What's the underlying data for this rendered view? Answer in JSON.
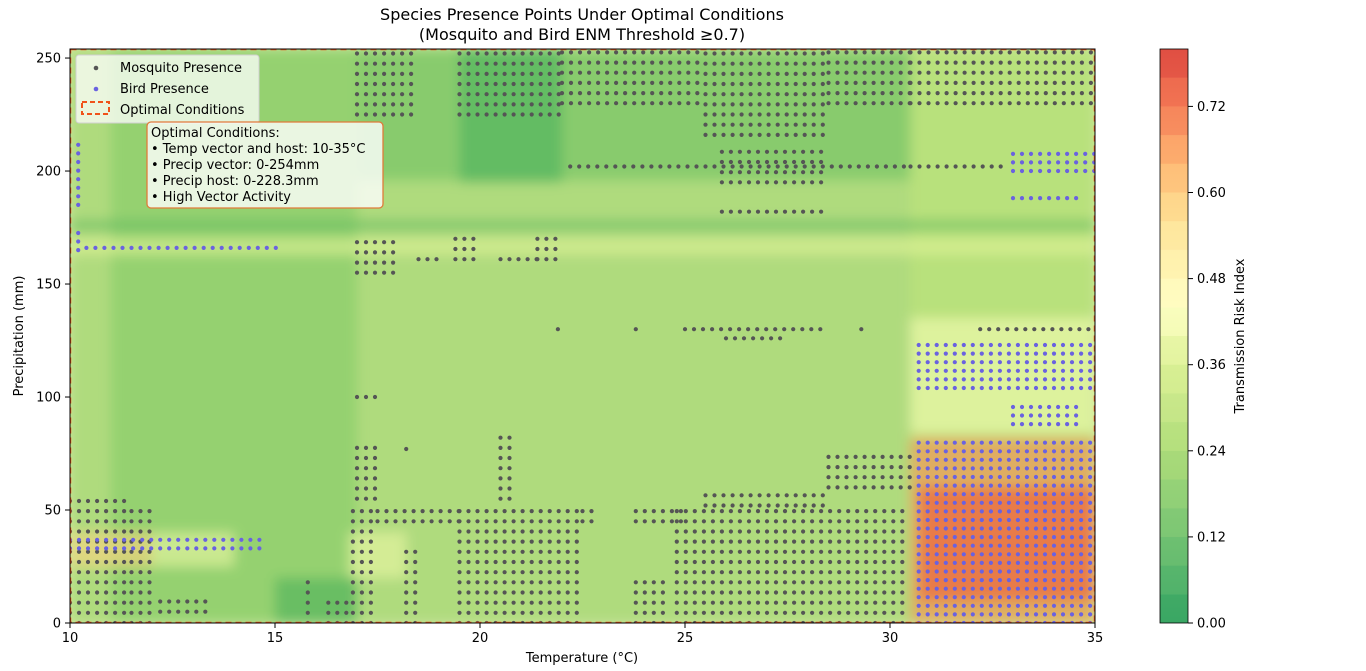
{
  "chart_data": {
    "type": "heatmap",
    "title": "Species Presence Points Under Optimal Conditions",
    "subtitle": "(Mosquito and Bird ENM Threshold ≥0.7)",
    "xlabel": "Temperature (°C)",
    "ylabel": "Precipitation (mm)",
    "xlim": [
      10,
      35
    ],
    "ylim": [
      0,
      254
    ],
    "x_ticks": [
      "10",
      "15",
      "20",
      "25",
      "30",
      "35"
    ],
    "y_ticks": [
      "0",
      "50",
      "100",
      "150",
      "200",
      "250"
    ],
    "grid": false,
    "legend_position": "upper-left",
    "legend": [
      {
        "label": "Mosquito Presence",
        "marker": "point",
        "color": "#555555"
      },
      {
        "label": "Bird Presence",
        "marker": "point",
        "color": "#6a62e0"
      },
      {
        "label": "Optimal Conditions",
        "marker": "dashed-box",
        "color": "#f0531a"
      }
    ],
    "annotation": {
      "lines": [
        "Optimal Conditions:",
        "• Temp vector and host: 10-35°C",
        "• Precip vector: 0-254mm",
        "• Precip host: 0-228.3mm",
        "• High Vector Activity"
      ]
    },
    "colorbar": {
      "label": "Transmission Risk Index",
      "range": [
        0,
        0.8
      ],
      "ticks": [
        "0.00",
        "0.12",
        "0.24",
        "0.36",
        "0.48",
        "0.60",
        "0.72"
      ],
      "colormap": "RdYlGn_r",
      "levels": [
        0,
        0.04,
        0.08,
        0.12,
        0.16,
        0.2,
        0.24,
        0.28,
        0.32,
        0.36,
        0.4,
        0.44,
        0.48,
        0.52,
        0.56,
        0.6,
        0.64,
        0.68,
        0.72,
        0.76,
        0.8
      ]
    },
    "risk_regions": [
      {
        "x": [
          10,
          35
        ],
        "y": [
          0,
          254
        ],
        "risk": 0.22
      },
      {
        "x": [
          17,
          30.5
        ],
        "y": [
          196,
          254
        ],
        "risk": 0.14
      },
      {
        "x": [
          11,
          17
        ],
        "y": [
          0,
          254
        ],
        "risk": 0.18
      },
      {
        "x": [
          30.5,
          35
        ],
        "y": [
          0,
          254
        ],
        "risk": 0.3
      },
      {
        "x": [
          10,
          35
        ],
        "y": [
          163,
          170
        ],
        "risk": 0.38
      },
      {
        "x": [
          10,
          35
        ],
        "y": [
          174,
          178
        ],
        "risk": 0.1
      },
      {
        "x": [
          30.5,
          35
        ],
        "y": [
          84,
          135
        ],
        "risk": 0.42
      },
      {
        "x": [
          30.5,
          35
        ],
        "y": [
          0,
          82
        ],
        "risk": 0.68
      },
      {
        "x": [
          30.7,
          35
        ],
        "y": [
          10,
          60
        ],
        "risk": 0.74
      },
      {
        "x": [
          10,
          12
        ],
        "y": [
          25,
          40
        ],
        "risk": 0.58
      },
      {
        "x": [
          12,
          14
        ],
        "y": [
          25,
          40
        ],
        "risk": 0.4
      },
      {
        "x": [
          16.8,
          18.2
        ],
        "y": [
          20,
          40
        ],
        "risk": 0.4
      },
      {
        "x": [
          15,
          17
        ],
        "y": [
          0,
          20
        ],
        "risk": 0.08
      },
      {
        "x": [
          19.5,
          22
        ],
        "y": [
          195,
          254
        ],
        "risk": 0.08
      }
    ],
    "series": [
      {
        "name": "Mosquito Presence",
        "color": "#555555",
        "clusters": [
          {
            "x": [
              17.0,
              18.4,
              0.22
            ],
            "y": [
              225,
              254,
              4.5
            ]
          },
          {
            "x": [
              19.5,
              22.0,
              0.22
            ],
            "y": [
              225,
              254,
              4.5
            ]
          },
          {
            "x": [
              22.0,
              25.5,
              0.22
            ],
            "y": [
              230,
              254,
              4.5
            ]
          },
          {
            "x": [
              25.5,
              28.5,
              0.22
            ],
            "y": [
              216,
              254,
              4.5
            ]
          },
          {
            "x": [
              28.5,
              30.5,
              0.22
            ],
            "y": [
              230,
              254,
              4.5
            ]
          },
          {
            "x": [
              30.5,
              35.0,
              0.22
            ],
            "y": [
              230,
              254,
              4.5
            ]
          },
          {
            "x": [
              22.2,
              30.5,
              0.22
            ],
            "y": [
              202,
              202,
              4.5
            ]
          },
          {
            "x": [
              30.5,
              32.8,
              0.22
            ],
            "y": [
              202,
              202,
              4.5
            ]
          },
          {
            "x": [
              25.9,
              28.5,
              0.22
            ],
            "y": [
              195,
              212,
              4.5
            ]
          },
          {
            "x": [
              25.9,
              28.5,
              0.22
            ],
            "y": [
              182,
              182,
              4.5
            ]
          },
          {
            "x": [
              17.0,
              18.0,
              0.22
            ],
            "y": [
              155,
              170,
              4.5
            ]
          },
          {
            "x": [
              18.5,
              19.0,
              0.22
            ],
            "y": [
              161,
              161,
              4.5
            ]
          },
          {
            "x": [
              19.4,
              19.9,
              0.22
            ],
            "y": [
              161,
              170,
              4.5
            ]
          },
          {
            "x": [
              20.5,
              21.4,
              0.22
            ],
            "y": [
              161,
              161,
              4.5
            ]
          },
          {
            "x": [
              21.4,
              21.9,
              0.22
            ],
            "y": [
              161,
              170,
              4.5
            ]
          },
          {
            "x": [
              21.9,
              22.0,
              0.22
            ],
            "y": [
              130,
              130,
              4.5
            ]
          },
          {
            "x": [
              23.8,
              23.9,
              0.22
            ],
            "y": [
              130,
              134,
              4.5
            ]
          },
          {
            "x": [
              25.0,
              28.5,
              0.22
            ],
            "y": [
              130,
              134,
              4.5
            ]
          },
          {
            "x": [
              26.0,
              27.5,
              0.22
            ],
            "y": [
              126,
              126,
              4.5
            ]
          },
          {
            "x": [
              29.3,
              29.4,
              0.22
            ],
            "y": [
              130,
              134,
              4.5
            ]
          },
          {
            "x": [
              32.2,
              35.0,
              0.22
            ],
            "y": [
              130,
              130,
              4.5
            ]
          },
          {
            "x": [
              17.0,
              17.5,
              0.22
            ],
            "y": [
              100,
              100,
              4.5
            ]
          },
          {
            "x": [
              17.0,
              17.5,
              0.22
            ],
            "y": [
              55,
              80,
              4.5
            ]
          },
          {
            "x": [
              18.2,
              18.3,
              0.22
            ],
            "y": [
              77,
              77,
              4.5
            ]
          },
          {
            "x": [
              20.5,
              20.9,
              0.22
            ],
            "y": [
              55,
              82,
              4.5
            ]
          },
          {
            "x": [
              28.5,
              30.5,
              0.22
            ],
            "y": [
              60,
              74,
              4.5
            ]
          },
          {
            "x": [
              10.0,
              11.5,
              0.22
            ],
            "y": [
              0,
              55,
              4.5
            ]
          },
          {
            "x": [
              11.5,
              12.0,
              0.22
            ],
            "y": [
              0,
              50,
              4.5
            ]
          },
          {
            "x": [
              12.2,
              13.4,
              0.22
            ],
            "y": [
              5,
              12,
              4.5
            ]
          },
          {
            "x": [
              15.8,
              16.0,
              0.22
            ],
            "y": [
              0,
              20,
              4.5
            ]
          },
          {
            "x": [
              16.3,
              16.9,
              0.22
            ],
            "y": [
              0,
              12,
              4.5
            ]
          },
          {
            "x": [
              16.9,
              17.5,
              0.22
            ],
            "y": [
              0,
              52,
              4.5
            ]
          },
          {
            "x": [
              17.5,
              19.5,
              0.22
            ],
            "y": [
              45,
              52,
              4.5
            ]
          },
          {
            "x": [
              18.2,
              18.5,
              0.22
            ],
            "y": [
              0,
              32,
              4.5
            ]
          },
          {
            "x": [
              19.5,
              22.5,
              0.22
            ],
            "y": [
              0,
              52,
              4.5
            ]
          },
          {
            "x": [
              22.5,
              22.8,
              0.22
            ],
            "y": [
              45,
              52,
              4.5
            ]
          },
          {
            "x": [
              23.8,
              25.0,
              0.22
            ],
            "y": [
              45,
              52,
              4.5
            ]
          },
          {
            "x": [
              23.8,
              24.5,
              0.22
            ],
            "y": [
              0,
              22,
              4.5
            ]
          },
          {
            "x": [
              24.8,
              30.5,
              0.22
            ],
            "y": [
              0,
              52,
              4.5
            ]
          },
          {
            "x": [
              25.5,
              28.5,
              0.22
            ],
            "y": [
              52,
              58,
              4.5
            ]
          }
        ]
      },
      {
        "name": "Bird Presence",
        "color": "#6a62e0",
        "clusters": [
          {
            "x": [
              10.2,
              10.3,
              0.22
            ],
            "y": [
              185,
              215,
              3.8
            ]
          },
          {
            "x": [
              10.2,
              10.3,
              0.22
            ],
            "y": [
              165,
              175,
              3.8
            ]
          },
          {
            "x": [
              10.4,
              15.2,
              0.22
            ],
            "y": [
              166,
              166,
              3.8
            ]
          },
          {
            "x": [
              10.0,
              14.8,
              0.22
            ],
            "y": [
              33,
              37,
              3.8
            ]
          },
          {
            "x": [
              33.0,
              34.6,
              0.22
            ],
            "y": [
              188,
              188,
              3.8
            ]
          },
          {
            "x": [
              33.0,
              35.0,
              0.22
            ],
            "y": [
              200,
              210,
              3.8
            ]
          },
          {
            "x": [
              30.7,
              35.0,
              0.22
            ],
            "y": [
              104,
              126,
              3.8
            ]
          },
          {
            "x": [
              33.0,
              34.6,
              0.22
            ],
            "y": [
              88,
              98,
              3.8
            ]
          },
          {
            "x": [
              30.7,
              35.0,
              0.22
            ],
            "y": [
              0,
              82,
              3.8
            ]
          }
        ]
      }
    ]
  }
}
